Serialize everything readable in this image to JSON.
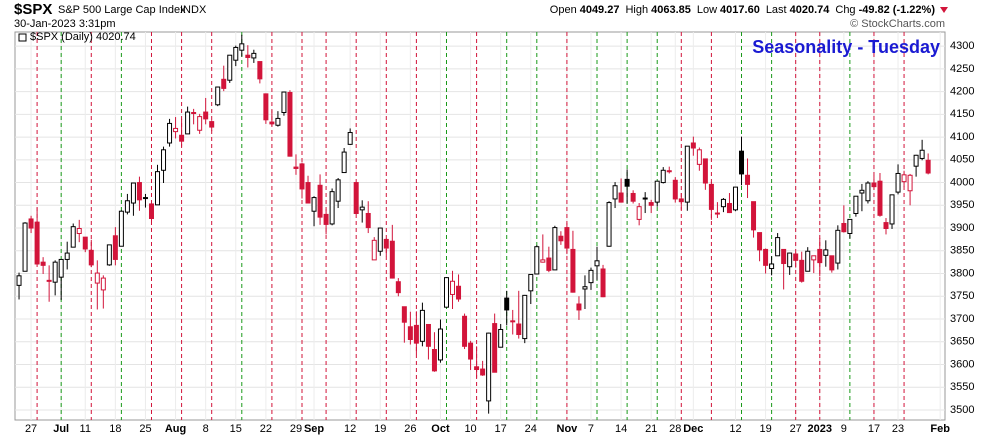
{
  "header": {
    "symbol": "$SPX",
    "name": "S&P 500 Large Cap Index",
    "exchange": "INDX",
    "timestamp": "30-Jan-2023 3:31pm",
    "copyright": "© StockCharts.com",
    "stats": [
      {
        "label": "Open",
        "value": "4049.27"
      },
      {
        "label": "High",
        "value": "4063.85"
      },
      {
        "label": "Low",
        "value": "4017.60"
      },
      {
        "label": "Last",
        "value": "4020.74"
      },
      {
        "label": "Chg",
        "value": "-49.82 (-1.22%)"
      }
    ]
  },
  "chart_data": {
    "type": "candlestick",
    "title": "Seasonality - Tuesday",
    "legend": "$SPX (Daily) 4020.74",
    "series": {
      "open": [
        3774,
        3805,
        3920,
        3913,
        3825,
        3785,
        3781,
        3792,
        3831,
        3858,
        3888,
        3880,
        3851,
        3779,
        3764,
        3819,
        3883,
        3860,
        3935,
        3955,
        4000,
        3965,
        3953,
        3951,
        4027,
        4087,
        4112,
        4104,
        4107,
        4154,
        4115,
        4155,
        4134,
        4171,
        4227,
        4225,
        4269,
        4291,
        4280,
        4274,
        4266,
        4195,
        4133,
        4126,
        4154,
        4198,
        4034,
        4041,
        4000,
        3937,
        3994,
        3930,
        3909,
        3959,
        4022,
        4084,
        4000,
        3940,
        3932,
        3830,
        3849,
        3875,
        3871,
        3782,
        3727,
        3683,
        3686,
        3651,
        3688,
        3633,
        3610,
        3726,
        3754,
        3772,
        3706,
        3647,
        3595,
        3590,
        3520,
        3690,
        3638,
        3746,
        3696,
        3689,
        3657,
        3762,
        3799,
        3825,
        3834,
        3808,
        3882,
        3901,
        3853,
        3733,
        3766,
        3780,
        3817,
        3810,
        3860,
        3964,
        3977,
        4007,
        3976,
        3919,
        3966,
        3956,
        3957,
        4000,
        4024,
        4005,
        3964,
        3957,
        4087,
        4040,
        4052,
        3996,
        3933,
        3947,
        3954,
        3940,
        4069,
        4016,
        3958,
        3890,
        3853,
        3811,
        3839,
        3853,
        3815,
        3843,
        3829,
        3805,
        3830,
        3853,
        3840,
        3839,
        3823,
        3910,
        3888,
        3932,
        3977,
        3960,
        3999,
        4003,
        3912,
        3909,
        3979,
        4002,
        3982,
        4036,
        4053,
        4049
      ],
      "high": [
        3802,
        3913,
        3927,
        3945,
        3836,
        3818,
        3829,
        3832,
        3870,
        3910,
        3918,
        3880,
        3874,
        3829,
        3796,
        3863,
        3902,
        3939,
        3975,
        3999,
        4013,
        3975,
        3954,
        4039,
        4079,
        4140,
        4144,
        4140,
        4167,
        4162,
        4151,
        4186,
        4137,
        4211,
        4257,
        4280,
        4301,
        4325,
        4302,
        4292,
        4266,
        4196,
        4159,
        4157,
        4200,
        4203,
        4062,
        4044,
        4015,
        3970,
        4018,
        3942,
        3987,
        4010,
        4076,
        4119,
        4000,
        3961,
        3959,
        3880,
        3900,
        3877,
        3907,
        3790,
        3727,
        3716,
        3717,
        3736,
        3688,
        3671,
        3699,
        3792,
        3806,
        3798,
        3712,
        3652,
        3640,
        3608,
        3670,
        3712,
        3689,
        3762,
        3720,
        3762,
        3753,
        3799,
        3862,
        3886,
        3859,
        3905,
        3893,
        3911,
        3894,
        3750,
        3796,
        3813,
        3859,
        3819,
        3959,
        4001,
        4009,
        4029,
        3983,
        3955,
        3979,
        3962,
        4004,
        4034,
        4035,
        4012,
        3977,
        4080,
        4101,
        4077,
        4052,
        4002,
        3957,
        3966,
        3977,
        3990,
        4101,
        4053,
        3958,
        3890,
        3855,
        3838,
        3889,
        3853,
        3846,
        3846,
        3848,
        3858,
        3839,
        3878,
        3873,
        3839,
        3906,
        3950,
        3919,
        3970,
        3997,
        4003,
        4015,
        4021,
        3922,
        3973,
        4040,
        4026,
        4019,
        4061,
        4094,
        4064
      ],
      "low": [
        3743,
        3805,
        3889,
        3820,
        3799,
        3738,
        3752,
        3742,
        3809,
        3858,
        3869,
        3847,
        3814,
        3721,
        3723,
        3817,
        3818,
        3860,
        3930,
        3927,
        3938,
        3945,
        3910,
        3951,
        3999,
        4079,
        4097,
        4079,
        4107,
        4128,
        4107,
        4128,
        4113,
        4168,
        4201,
        4219,
        4256,
        4277,
        4253,
        4263,
        4218,
        4129,
        4124,
        4123,
        4147,
        4057,
        4017,
        3965,
        3954,
        3904,
        3907,
        3886,
        3906,
        3944,
        4022,
        4083,
        3932,
        3912,
        3889,
        3830,
        3839,
        3838,
        3789,
        3750,
        3648,
        3644,
        3623,
        3640,
        3611,
        3584,
        3604,
        3726,
        3722,
        3738,
        3634,
        3588,
        3571,
        3575,
        3492,
        3583,
        3638,
        3686,
        3666,
        3657,
        3647,
        3733,
        3799,
        3824,
        3803,
        3808,
        3863,
        3843,
        3758,
        3698,
        3722,
        3764,
        3786,
        3748,
        3859,
        3944,
        3956,
        3954,
        3954,
        3906,
        3933,
        3933,
        3947,
        3998,
        4020,
        3956,
        3940,
        3938,
        4059,
        4026,
        3984,
        3918,
        3922,
        3935,
        3933,
        3937,
        3994,
        3966,
        3879,
        3827,
        3800,
        3796,
        3839,
        3765,
        3797,
        3813,
        3780,
        3805,
        3801,
        3794,
        3815,
        3802,
        3809,
        3890,
        3877,
        3925,
        3937,
        3954,
        3985,
        3925,
        3886,
        3898,
        3974,
        3990,
        3950,
        4013,
        4049,
        4018
      ],
      "close": [
        3795,
        3911,
        3900,
        3821,
        3818,
        3785,
        3825,
        3831,
        3845,
        3903,
        3899,
        3854,
        3819,
        3801,
        3790,
        3863,
        3831,
        3937,
        3960,
        3999,
        3962,
        3967,
        3921,
        4024,
        4072,
        4130,
        4119,
        4091,
        4155,
        4152,
        4145,
        4140,
        4122,
        4210,
        4207,
        4280,
        4297,
        4305,
        4275,
        4284,
        4228,
        4138,
        4129,
        4141,
        4199,
        4058,
        4031,
        3986,
        3955,
        3967,
        3924,
        3908,
        3980,
        4006,
        4067,
        4110,
        3932,
        3946,
        3901,
        3873,
        3900,
        3856,
        3790,
        3758,
        3693,
        3655,
        3647,
        3719,
        3640,
        3586,
        3678,
        3791,
        3783,
        3744,
        3640,
        3612,
        3589,
        3577,
        3669,
        3583,
        3677,
        3720,
        3695,
        3666,
        3752,
        3798,
        3859,
        3830,
        3807,
        3901,
        3872,
        3856,
        3759,
        3720,
        3771,
        3807,
        3828,
        3749,
        3956,
        3993,
        3957,
        3992,
        3959,
        3947,
        3965,
        3950,
        4003,
        4027,
        4026,
        3964,
        3958,
        4080,
        4076,
        4072,
        3999,
        3941,
        3933,
        3963,
        3934,
        3990,
        4019,
        3996,
        3896,
        3852,
        3818,
        3821,
        3879,
        3822,
        3845,
        3829,
        3783,
        3849,
        3839,
        3824,
        3852,
        3808,
        3895,
        3892,
        3919,
        3970,
        3983,
        3999,
        3991,
        3928,
        3899,
        3973,
        4020,
        4017,
        4016,
        4060,
        4071,
        4021
      ]
    },
    "up_color": "#000000",
    "down_color": "#d2143a",
    "tuesdays": [
      3,
      7,
      12,
      17,
      22,
      27,
      32,
      37,
      42,
      47,
      51,
      56,
      61,
      66,
      71,
      76,
      81,
      86,
      91,
      96,
      101,
      106,
      110,
      115,
      120,
      125,
      129,
      133,
      138,
      142,
      147
    ],
    "xlim": [
      -0.67,
      153.8
    ],
    "xticks": [
      {
        "value": 2,
        "label": "27"
      },
      {
        "value": 7,
        "label": "Jul"
      },
      {
        "value": 11,
        "label": "11"
      },
      {
        "value": 16,
        "label": "18"
      },
      {
        "value": 21,
        "label": "25"
      },
      {
        "value": 26,
        "label": "Aug"
      },
      {
        "value": 31,
        "label": "8"
      },
      {
        "value": 36,
        "label": "15"
      },
      {
        "value": 41,
        "label": "22"
      },
      {
        "value": 46,
        "label": "29"
      },
      {
        "value": 49,
        "label": "Sep"
      },
      {
        "value": 55,
        "label": "12"
      },
      {
        "value": 60,
        "label": "19"
      },
      {
        "value": 65,
        "label": "26"
      },
      {
        "value": 70,
        "label": "Oct"
      },
      {
        "value": 75,
        "label": "10"
      },
      {
        "value": 80,
        "label": "17"
      },
      {
        "value": 85,
        "label": "24"
      },
      {
        "value": 91,
        "label": "Nov"
      },
      {
        "value": 95,
        "label": "7"
      },
      {
        "value": 100,
        "label": "14"
      },
      {
        "value": 105,
        "label": "21"
      },
      {
        "value": 109,
        "label": "28"
      },
      {
        "value": 112,
        "label": "Dec"
      },
      {
        "value": 119,
        "label": "12"
      },
      {
        "value": 124,
        "label": "19"
      },
      {
        "value": 129,
        "label": "27"
      },
      {
        "value": 133,
        "label": "2023"
      },
      {
        "value": 137,
        "label": "9"
      },
      {
        "value": 142,
        "label": "17"
      },
      {
        "value": 146,
        "label": "23"
      },
      {
        "value": 153,
        "label": "Feb"
      }
    ],
    "ylim": [
      3478,
      4331
    ],
    "yticks": [
      3500,
      3550,
      3600,
      3650,
      3700,
      3750,
      3800,
      3850,
      3900,
      3950,
      4000,
      4050,
      4100,
      4150,
      4200,
      4250,
      4300
    ],
    "grid": true
  }
}
